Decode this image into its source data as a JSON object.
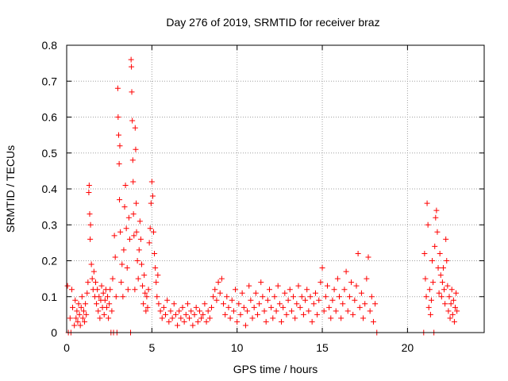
{
  "chart_data": {
    "type": "scatter",
    "title": "Day 276 of 2019, SRMTID for receiver braz",
    "xlabel": "GPS time / hours",
    "ylabel": "SRMTID / TECUs",
    "xlim": [
      0,
      24.5
    ],
    "ylim": [
      0,
      0.8
    ],
    "x_ticks": [
      0,
      5,
      10,
      15,
      20
    ],
    "x_tick_labels": [
      "0",
      "5",
      "10",
      "15",
      "20"
    ],
    "y_ticks": [
      0,
      0.1,
      0.2,
      0.3,
      0.4,
      0.5,
      0.6,
      0.7,
      0.8
    ],
    "y_tick_labels": [
      "0",
      "0.1",
      "0.2",
      "0.3",
      "0.4",
      "0.5",
      "0.6",
      "0.7",
      "0.8"
    ],
    "grid": true,
    "marker": "+",
    "color": "#ff0000",
    "series": [
      {
        "name": "SRMTID",
        "points": [
          [
            0.05,
            0.13
          ],
          [
            0.1,
            0.0
          ],
          [
            0.2,
            0.04
          ],
          [
            0.25,
            0.0
          ],
          [
            0.3,
            0.12
          ],
          [
            0.35,
            0.07
          ],
          [
            0.45,
            0.02
          ],
          [
            0.5,
            0.09
          ],
          [
            0.55,
            0.04
          ],
          [
            0.6,
            0.06
          ],
          [
            0.65,
            0.03
          ],
          [
            0.7,
            0.08
          ],
          [
            0.75,
            0.05
          ],
          [
            0.8,
            0.02
          ],
          [
            0.85,
            0.07
          ],
          [
            0.9,
            0.1
          ],
          [
            0.95,
            0.04
          ],
          [
            1.0,
            0.06
          ],
          [
            1.05,
            0.03
          ],
          [
            1.1,
            0.08
          ],
          [
            1.15,
            0.05
          ],
          [
            1.2,
            0.11
          ],
          [
            1.25,
            0.14
          ],
          [
            1.3,
            0.39
          ],
          [
            1.32,
            0.41
          ],
          [
            1.35,
            0.33
          ],
          [
            1.38,
            0.26
          ],
          [
            1.4,
            0.3
          ],
          [
            1.45,
            0.19
          ],
          [
            1.5,
            0.15
          ],
          [
            1.55,
            0.12
          ],
          [
            1.6,
            0.17
          ],
          [
            1.65,
            0.1
          ],
          [
            1.7,
            0.14
          ],
          [
            1.75,
            0.08
          ],
          [
            1.8,
            0.12
          ],
          [
            1.85,
            0.06
          ],
          [
            1.9,
            0.1
          ],
          [
            1.95,
            0.04
          ],
          [
            2.0,
            0.09
          ],
          [
            2.05,
            0.13
          ],
          [
            2.1,
            0.07
          ],
          [
            2.15,
            0.11
          ],
          [
            2.2,
            0.05
          ],
          [
            2.25,
            0.09
          ],
          [
            2.3,
            0.12
          ],
          [
            2.35,
            0.07
          ],
          [
            2.4,
            0.1
          ],
          [
            2.45,
            0.04
          ],
          [
            2.5,
            0.08
          ],
          [
            2.55,
            0.12
          ],
          [
            2.6,
            0.0
          ],
          [
            2.65,
            0.06
          ],
          [
            2.7,
            0.15
          ],
          [
            2.75,
            0.0
          ],
          [
            2.8,
            0.27
          ],
          [
            2.85,
            0.21
          ],
          [
            2.9,
            0.1
          ],
          [
            2.95,
            0.0
          ],
          [
            3.0,
            0.68
          ],
          [
            3.02,
            0.6
          ],
          [
            3.05,
            0.55
          ],
          [
            3.08,
            0.47
          ],
          [
            3.1,
            0.37
          ],
          [
            3.12,
            0.52
          ],
          [
            3.15,
            0.28
          ],
          [
            3.2,
            0.14
          ],
          [
            3.25,
            0.19
          ],
          [
            3.3,
            0.1
          ],
          [
            3.35,
            0.23
          ],
          [
            3.4,
            0.35
          ],
          [
            3.45,
            0.41
          ],
          [
            3.5,
            0.29
          ],
          [
            3.55,
            0.18
          ],
          [
            3.6,
            0.12
          ],
          [
            3.65,
            0.32
          ],
          [
            3.7,
            0.26
          ],
          [
            3.75,
            0.0
          ],
          [
            3.78,
            0.76
          ],
          [
            3.8,
            0.74
          ],
          [
            3.82,
            0.67
          ],
          [
            3.85,
            0.59
          ],
          [
            3.88,
            0.48
          ],
          [
            3.9,
            0.42
          ],
          [
            3.92,
            0.33
          ],
          [
            3.95,
            0.27
          ],
          [
            4.0,
            0.12
          ],
          [
            4.02,
            0.57
          ],
          [
            4.05,
            0.51
          ],
          [
            4.08,
            0.36
          ],
          [
            4.1,
            0.28
          ],
          [
            4.15,
            0.2
          ],
          [
            4.2,
            0.15
          ],
          [
            4.25,
            0.23
          ],
          [
            4.3,
            0.31
          ],
          [
            4.35,
            0.26
          ],
          [
            4.4,
            0.19
          ],
          [
            4.45,
            0.13
          ],
          [
            4.5,
            0.08
          ],
          [
            4.55,
            0.16
          ],
          [
            4.6,
            0.11
          ],
          [
            4.65,
            0.06
          ],
          [
            4.7,
            0.1
          ],
          [
            4.75,
            0.07
          ],
          [
            4.8,
            0.12
          ],
          [
            4.85,
            0.25
          ],
          [
            4.9,
            0.29
          ],
          [
            4.95,
            0.36
          ],
          [
            5.0,
            0.42
          ],
          [
            5.05,
            0.38
          ],
          [
            5.1,
            0.28
          ],
          [
            5.15,
            0.22
          ],
          [
            5.2,
            0.18
          ],
          [
            5.25,
            0.14
          ],
          [
            5.3,
            0.1
          ],
          [
            5.35,
            0.16
          ],
          [
            5.4,
            0.08
          ],
          [
            5.5,
            0.06
          ],
          [
            5.6,
            0.04
          ],
          [
            5.7,
            0.07
          ],
          [
            5.8,
            0.05
          ],
          [
            5.9,
            0.09
          ],
          [
            6.0,
            0.03
          ],
          [
            6.1,
            0.06
          ],
          [
            6.2,
            0.04
          ],
          [
            6.3,
            0.08
          ],
          [
            6.4,
            0.05
          ],
          [
            6.5,
            0.02
          ],
          [
            6.6,
            0.06
          ],
          [
            6.7,
            0.04
          ],
          [
            6.8,
            0.07
          ],
          [
            6.9,
            0.03
          ],
          [
            7.0,
            0.05
          ],
          [
            7.1,
            0.08
          ],
          [
            7.2,
            0.04
          ],
          [
            7.3,
            0.06
          ],
          [
            7.4,
            0.02
          ],
          [
            7.5,
            0.05
          ],
          [
            7.6,
            0.07
          ],
          [
            7.7,
            0.03
          ],
          [
            7.8,
            0.06
          ],
          [
            7.9,
            0.04
          ],
          [
            8.0,
            0.05
          ],
          [
            8.1,
            0.08
          ],
          [
            8.2,
            0.03
          ],
          [
            8.3,
            0.06
          ],
          [
            8.4,
            0.04
          ],
          [
            8.5,
            0.07
          ],
          [
            8.6,
            0.1
          ],
          [
            8.7,
            0.12
          ],
          [
            8.8,
            0.09
          ],
          [
            8.9,
            0.14
          ],
          [
            9.0,
            0.11
          ],
          [
            9.1,
            0.15
          ],
          [
            9.2,
            0.08
          ],
          [
            9.3,
            0.05
          ],
          [
            9.4,
            0.1
          ],
          [
            9.5,
            0.07
          ],
          [
            9.6,
            0.04
          ],
          [
            9.7,
            0.09
          ],
          [
            9.8,
            0.06
          ],
          [
            9.9,
            0.12
          ],
          [
            10.0,
            0.03
          ],
          [
            10.1,
            0.08
          ],
          [
            10.2,
            0.05
          ],
          [
            10.3,
            0.11
          ],
          [
            10.4,
            0.07
          ],
          [
            10.5,
            0.02
          ],
          [
            10.6,
            0.06
          ],
          [
            10.7,
            0.13
          ],
          [
            10.8,
            0.09
          ],
          [
            10.9,
            0.04
          ],
          [
            11.0,
            0.07
          ],
          [
            11.1,
            0.11
          ],
          [
            11.2,
            0.05
          ],
          [
            11.3,
            0.08
          ],
          [
            11.4,
            0.14
          ],
          [
            11.5,
            0.1
          ],
          [
            11.6,
            0.06
          ],
          [
            11.7,
            0.03
          ],
          [
            11.8,
            0.09
          ],
          [
            11.9,
            0.12
          ],
          [
            12.0,
            0.07
          ],
          [
            12.1,
            0.04
          ],
          [
            12.2,
            0.1
          ],
          [
            12.3,
            0.06
          ],
          [
            12.4,
            0.13
          ],
          [
            12.5,
            0.08
          ],
          [
            12.6,
            0.03
          ],
          [
            12.7,
            0.07
          ],
          [
            12.8,
            0.11
          ],
          [
            12.9,
            0.05
          ],
          [
            13.0,
            0.09
          ],
          [
            13.1,
            0.12
          ],
          [
            13.2,
            0.06
          ],
          [
            13.3,
            0.1
          ],
          [
            13.4,
            0.04
          ],
          [
            13.5,
            0.08
          ],
          [
            13.6,
            0.13
          ],
          [
            13.7,
            0.07
          ],
          [
            13.8,
            0.1
          ],
          [
            13.9,
            0.05
          ],
          [
            14.0,
            0.09
          ],
          [
            14.1,
            0.12
          ],
          [
            14.2,
            0.06
          ],
          [
            14.3,
            0.1
          ],
          [
            14.4,
            0.03
          ],
          [
            14.5,
            0.08
          ],
          [
            14.6,
            0.11
          ],
          [
            14.7,
            0.05
          ],
          [
            14.8,
            0.09
          ],
          [
            14.9,
            0.14
          ],
          [
            15.0,
            0.18
          ],
          [
            15.1,
            0.06
          ],
          [
            15.2,
            0.1
          ],
          [
            15.3,
            0.13
          ],
          [
            15.4,
            0.07
          ],
          [
            15.5,
            0.04
          ],
          [
            15.6,
            0.09
          ],
          [
            15.7,
            0.12
          ],
          [
            15.8,
            0.06
          ],
          [
            15.9,
            0.15
          ],
          [
            16.0,
            0.1
          ],
          [
            16.1,
            0.04
          ],
          [
            16.2,
            0.08
          ],
          [
            16.3,
            0.12
          ],
          [
            16.4,
            0.17
          ],
          [
            16.5,
            0.06
          ],
          [
            16.6,
            0.1
          ],
          [
            16.7,
            0.14
          ],
          [
            16.8,
            0.05
          ],
          [
            16.9,
            0.09
          ],
          [
            17.0,
            0.13
          ],
          [
            17.1,
            0.22
          ],
          [
            17.2,
            0.07
          ],
          [
            17.3,
            0.11
          ],
          [
            17.4,
            0.04
          ],
          [
            17.5,
            0.08
          ],
          [
            17.6,
            0.15
          ],
          [
            17.7,
            0.21
          ],
          [
            17.8,
            0.06
          ],
          [
            17.9,
            0.1
          ],
          [
            18.0,
            0.03
          ],
          [
            18.1,
            0.08
          ],
          [
            18.2,
            0.0
          ],
          [
            20.95,
            0.0
          ],
          [
            21.0,
            0.22
          ],
          [
            21.05,
            0.15
          ],
          [
            21.1,
            0.1
          ],
          [
            21.15,
            0.36
          ],
          [
            21.2,
            0.3
          ],
          [
            21.25,
            0.07
          ],
          [
            21.3,
            0.12
          ],
          [
            21.35,
            0.05
          ],
          [
            21.4,
            0.09
          ],
          [
            21.45,
            0.2
          ],
          [
            21.5,
            0.14
          ],
          [
            21.55,
            0.0
          ],
          [
            21.6,
            0.24
          ],
          [
            21.65,
            0.32
          ],
          [
            21.7,
            0.34
          ],
          [
            21.75,
            0.28
          ],
          [
            21.8,
            0.18
          ],
          [
            21.85,
            0.11
          ],
          [
            21.9,
            0.22
          ],
          [
            21.95,
            0.16
          ],
          [
            22.0,
            0.1
          ],
          [
            22.05,
            0.14
          ],
          [
            22.1,
            0.18
          ],
          [
            22.15,
            0.12
          ],
          [
            22.2,
            0.08
          ],
          [
            22.25,
            0.26
          ],
          [
            22.3,
            0.2
          ],
          [
            22.35,
            0.13
          ],
          [
            22.4,
            0.06
          ],
          [
            22.45,
            0.1
          ],
          [
            22.5,
            0.04
          ],
          [
            22.55,
            0.08
          ],
          [
            22.6,
            0.12
          ],
          [
            22.65,
            0.05
          ],
          [
            22.7,
            0.09
          ],
          [
            22.75,
            0.03
          ],
          [
            22.8,
            0.07
          ],
          [
            22.85,
            0.11
          ],
          [
            22.9,
            0.06
          ]
        ]
      }
    ]
  }
}
